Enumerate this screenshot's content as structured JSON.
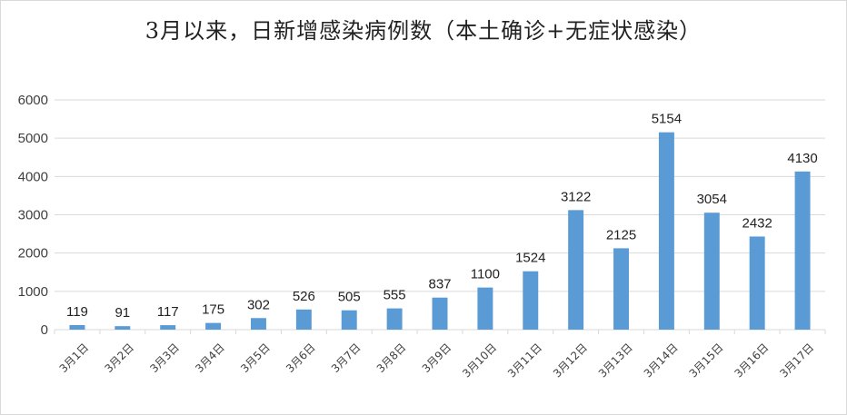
{
  "chart_data": {
    "type": "bar",
    "title": "3月以来，日新增感染病例数（本土确诊+无症状感染）",
    "categories": [
      "3月1日",
      "3月2日",
      "3月3日",
      "3月4日",
      "3月5日",
      "3月6日",
      "3月7日",
      "3月8日",
      "3月9日",
      "3月10日",
      "3月11日",
      "3月12日",
      "3月13日",
      "3月14日",
      "3月15日",
      "3月16日",
      "3月17日"
    ],
    "values": [
      119,
      91,
      117,
      175,
      302,
      526,
      505,
      555,
      837,
      1100,
      1524,
      3122,
      2125,
      5154,
      3054,
      2432,
      4130
    ],
    "ylim": [
      0,
      6000
    ],
    "yticks": [
      0,
      1000,
      2000,
      3000,
      4000,
      5000,
      6000
    ],
    "grid": true,
    "legend": "none",
    "bar_color": "#5b9bd5",
    "grid_color": "#d9d9d9"
  }
}
